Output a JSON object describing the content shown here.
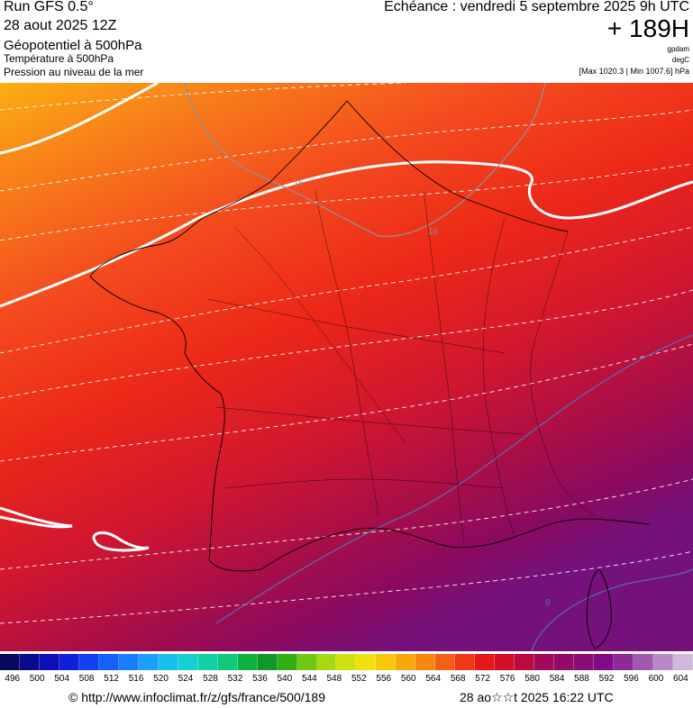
{
  "header": {
    "run": "Run GFS 0.5°",
    "date": "28 aout 2025 12Z",
    "param1": "Géopotentiel à 500hPa",
    "param2": "Température à 500hPa",
    "param3": "Pression au niveau de la mer",
    "echeance": "Echéance : vendredi 5 septembre 2025 9h UTC",
    "offset": "+ 189H",
    "unit1": "gpdam",
    "unit2": "degC",
    "pressure_range": "[Max 1020.3 | Min 1007.6] hPa"
  },
  "map": {
    "contour_labels": [
      "16",
      "16",
      "8"
    ],
    "gradient_colors": [
      "#fcae14",
      "#f7801a",
      "#f44a1e",
      "#ec2818",
      "#d01630",
      "#a80e48",
      "#8a0a60",
      "#74117a"
    ]
  },
  "legend": {
    "ticks": [
      "496",
      "500",
      "504",
      "508",
      "512",
      "516",
      "520",
      "524",
      "528",
      "532",
      "536",
      "540",
      "544",
      "548",
      "552",
      "556",
      "560",
      "564",
      "568",
      "572",
      "576",
      "580",
      "584",
      "588",
      "592",
      "596",
      "600",
      "604"
    ],
    "colors": [
      "#08085c",
      "#0a0a8c",
      "#0c10b4",
      "#1020d8",
      "#1040f0",
      "#1460f8",
      "#1880ff",
      "#1ca0ff",
      "#18c0f0",
      "#14d0d0",
      "#10d0a8",
      "#10c878",
      "#10b040",
      "#109828",
      "#30b010",
      "#70c810",
      "#a8d810",
      "#d0e010",
      "#f0e010",
      "#f8c808",
      "#f8a808",
      "#f88810",
      "#f46018",
      "#f03818",
      "#e81818",
      "#d41028",
      "#b80c40",
      "#a00a58",
      "#900a68",
      "#880c78",
      "#800a88",
      "#8c2a98",
      "#a058b0",
      "#b888c8",
      "#d0b8dc"
    ]
  },
  "footer": {
    "source": "© http://www.infoclimat.fr/z/gfs/france/500/189",
    "generated": "28 ao☆☆t 2025 16:22 UTC"
  }
}
